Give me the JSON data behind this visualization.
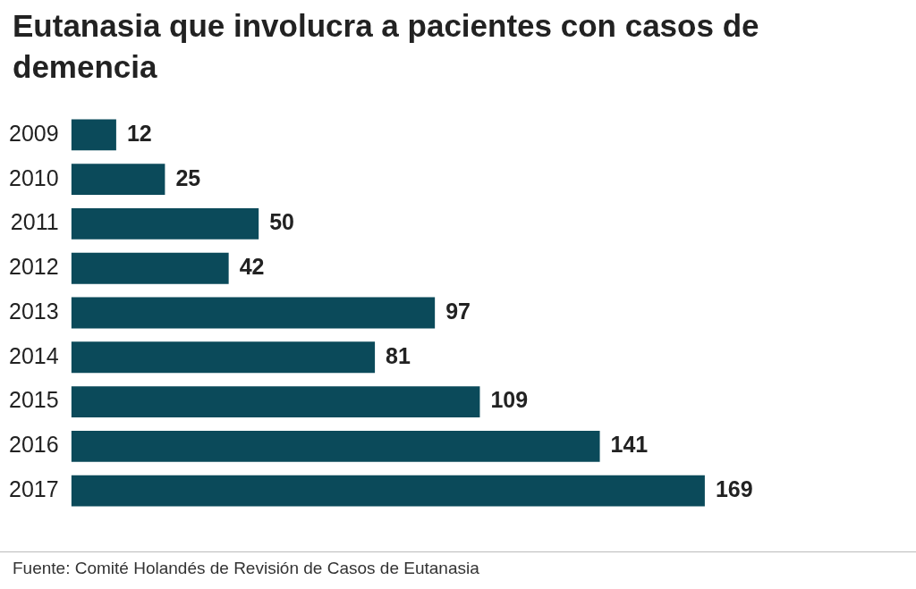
{
  "chart_data": {
    "type": "bar",
    "orientation": "horizontal",
    "title": "Eutanasia que involucra a pacientes con casos de demencia",
    "categories": [
      "2009",
      "2010",
      "2011",
      "2012",
      "2013",
      "2014",
      "2015",
      "2016",
      "2017"
    ],
    "values": [
      12,
      25,
      50,
      42,
      97,
      81,
      109,
      141,
      169
    ],
    "color": "#0b4a5a",
    "data_labels": true,
    "grid": false,
    "legend": false,
    "tick_labels": "y",
    "annotations": [
      "Fuente: Comité Holandés de Revisión de Casos de Eutanasia"
    ]
  }
}
